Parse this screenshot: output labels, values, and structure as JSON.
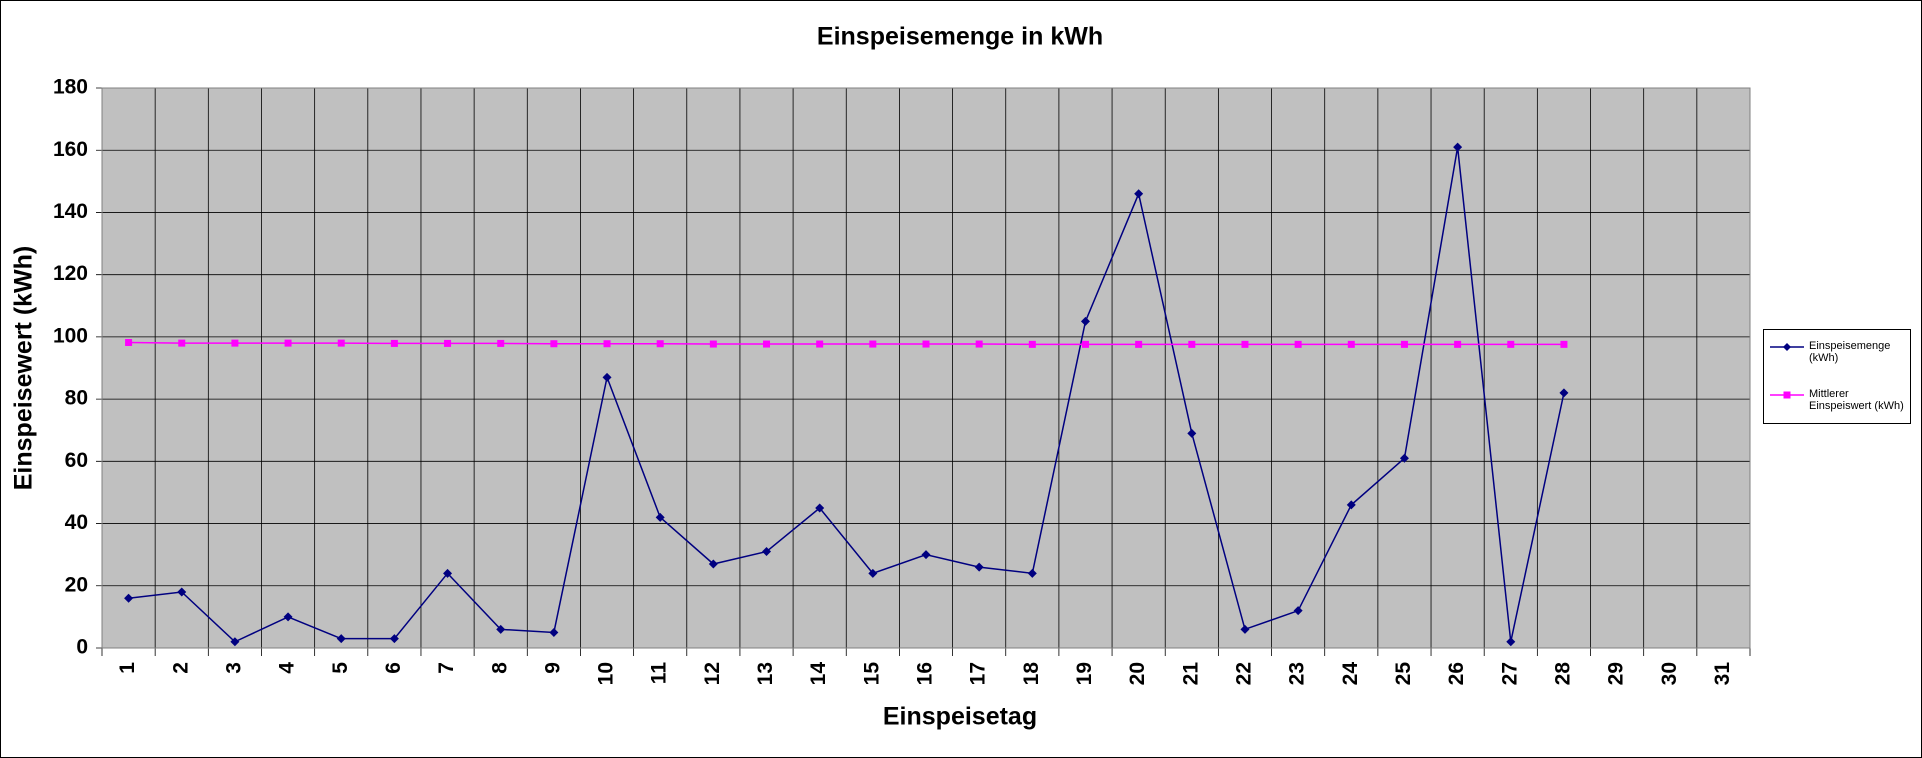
{
  "chart_data": {
    "type": "line",
    "title": "Einspeisemenge in kWh",
    "x_label": "Einspeisetag",
    "y_label": "Einspeisewert  (kWh)",
    "categories": [
      "1",
      "2",
      "3",
      "4",
      "5",
      "6",
      "7",
      "8",
      "9",
      "10",
      "11",
      "12",
      "13",
      "14",
      "15",
      "16",
      "17",
      "18",
      "19",
      "20",
      "21",
      "22",
      "23",
      "24",
      "25",
      "26",
      "27",
      "28",
      "29",
      "30",
      "31"
    ],
    "series": [
      {
        "name": "Einspeisemenge (kWh)",
        "color": "#000080",
        "marker": "diamond",
        "values": [
          16,
          18,
          2,
          10,
          3,
          3,
          24,
          6,
          5,
          87,
          42,
          27,
          31,
          45,
          24,
          30,
          26,
          24,
          105,
          146,
          69,
          6,
          12,
          46,
          61,
          161,
          2,
          82,
          null,
          null,
          null
        ]
      },
      {
        "name": "Mittlerer Einspeiswert (kWh)",
        "color": "#ff00ff",
        "marker": "square",
        "values": [
          98.2,
          98,
          98,
          98,
          98,
          97.9,
          97.9,
          97.9,
          97.8,
          97.8,
          97.8,
          97.7,
          97.7,
          97.7,
          97.7,
          97.7,
          97.7,
          97.6,
          97.6,
          97.6,
          97.6,
          97.6,
          97.6,
          97.6,
          97.6,
          97.6,
          97.6,
          97.6,
          null,
          null,
          null
        ]
      }
    ],
    "ylim": [
      0,
      180
    ],
    "yticks": [
      0,
      20,
      40,
      60,
      80,
      100,
      120,
      140,
      160,
      180
    ],
    "grid": true,
    "legend": "right"
  }
}
